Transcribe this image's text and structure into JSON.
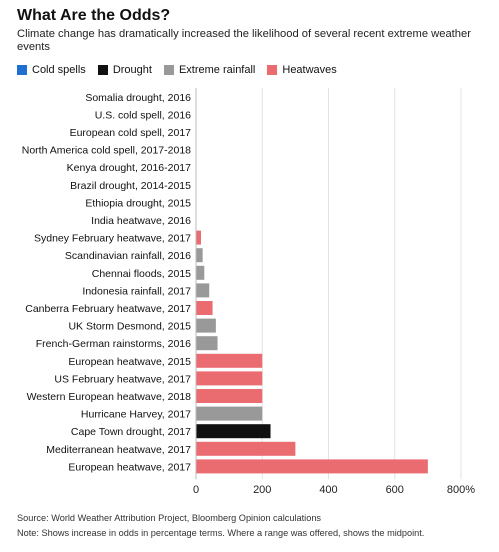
{
  "chart_data": {
    "type": "bar",
    "orientation": "horizontal",
    "title": "What Are the Odds?",
    "subtitle": "Climate change has dramatically increased the likelihood of several recent extreme weather events",
    "legend": [
      {
        "name": "Cold spells",
        "color": "#1f6fd1"
      },
      {
        "name": "Drought",
        "color": "#111111"
      },
      {
        "name": "Extreme rainfall",
        "color": "#999999"
      },
      {
        "name": "Heatwaves",
        "color": "#ea6b70"
      }
    ],
    "legend_placement": "top",
    "grid": true,
    "xlim": [
      0,
      800
    ],
    "xticks": [
      0,
      200,
      400,
      600,
      800
    ],
    "xtick_labels": [
      "0",
      "200",
      "400",
      "600",
      "800%"
    ],
    "categories": [
      "Somalia drought, 2016",
      "U.S. cold spell, 2016",
      "European cold spell, 2017",
      "North America cold spell, 2017-2018",
      "Kenya drought, 2016-2017",
      "Brazil drought, 2014-2015",
      "Ethiopia drought, 2015",
      "India heatwave, 2016",
      "Sydney February heatwave, 2017",
      "Scandinavian rainfall, 2016",
      "Chennai floods, 2015",
      "Indonesia rainfall, 2017",
      "Canberra February heatwave, 2017",
      "UK Storm Desmond, 2015",
      "French-German rainstorms, 2016",
      "European heatwave, 2015",
      "US February heatwave, 2017",
      "Western European heatwave, 2018",
      "Hurricane Harvey, 2017",
      "Cape Town drought, 2017",
      "Mediterranean heatwave, 2017",
      "European heatwave, 2017"
    ],
    "values": [
      0,
      0,
      0,
      0,
      0,
      0,
      0,
      0,
      15,
      20,
      25,
      40,
      50,
      60,
      65,
      200,
      200,
      200,
      200,
      225,
      300,
      700
    ],
    "types": [
      "Drought",
      "Cold spells",
      "Cold spells",
      "Cold spells",
      "Drought",
      "Drought",
      "Drought",
      "Heatwaves",
      "Heatwaves",
      "Extreme rainfall",
      "Extreme rainfall",
      "Extreme rainfall",
      "Heatwaves",
      "Extreme rainfall",
      "Extreme rainfall",
      "Heatwaves",
      "Heatwaves",
      "Heatwaves",
      "Extreme rainfall",
      "Drought",
      "Heatwaves",
      "Heatwaves"
    ],
    "source": "Source: World Weather Attribution Project, Bloomberg Opinion calculations",
    "note": "Note: Shows increase in odds in percentage terms. Where a range was offered, shows the midpoint."
  }
}
